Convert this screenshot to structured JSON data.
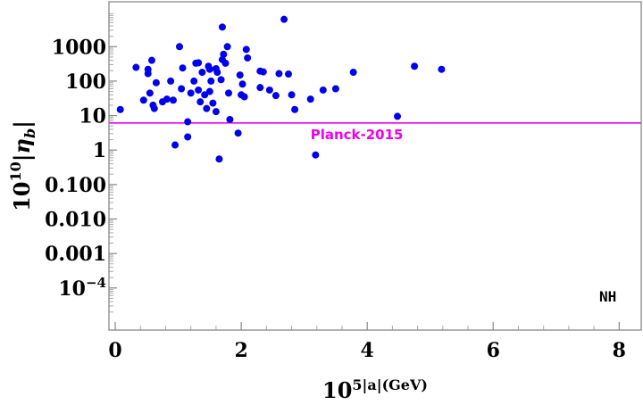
{
  "chart_data": {
    "type": "scatter",
    "title": "",
    "xlabel": "10^5|a|(GeV)",
    "ylabel": "10^10|η_b|",
    "x_scale": "linear",
    "y_scale": "log",
    "xlim": [
      -0.1,
      8.35
    ],
    "ylim": [
      6e-06,
      20000
    ],
    "xticks": [
      0,
      2,
      4,
      6,
      8
    ],
    "xtick_labels": [
      "0",
      "2",
      "4",
      "6",
      "8"
    ],
    "yticks": [
      1000,
      100,
      10,
      1,
      0.1,
      0.01,
      0.001,
      0.0001
    ],
    "ytick_labels": [
      "1000",
      "100",
      "10",
      "1",
      "0.100",
      "0.010",
      "0.001",
      "10^-4"
    ],
    "point_color": "#0000ee",
    "reference_line": {
      "label": "Planck-2015",
      "y": 6.1,
      "color": "#ee00ee"
    },
    "annotation": "NH",
    "points": [
      {
        "x": 0.08,
        "y": 15
      },
      {
        "x": 0.33,
        "y": 250
      },
      {
        "x": 0.45,
        "y": 28
      },
      {
        "x": 0.52,
        "y": 220
      },
      {
        "x": 0.52,
        "y": 165
      },
      {
        "x": 0.55,
        "y": 45
      },
      {
        "x": 0.58,
        "y": 400
      },
      {
        "x": 0.6,
        "y": 20
      },
      {
        "x": 0.62,
        "y": 16
      },
      {
        "x": 0.65,
        "y": 90
      },
      {
        "x": 0.75,
        "y": 25
      },
      {
        "x": 0.82,
        "y": 30
      },
      {
        "x": 0.88,
        "y": 100
      },
      {
        "x": 0.92,
        "y": 28
      },
      {
        "x": 0.95,
        "y": 1.4
      },
      {
        "x": 1.02,
        "y": 1000
      },
      {
        "x": 1.05,
        "y": 60
      },
      {
        "x": 1.07,
        "y": 240
      },
      {
        "x": 1.15,
        "y": 2.4
      },
      {
        "x": 1.15,
        "y": 6.6
      },
      {
        "x": 1.2,
        "y": 45
      },
      {
        "x": 1.25,
        "y": 100
      },
      {
        "x": 1.28,
        "y": 330
      },
      {
        "x": 1.32,
        "y": 340
      },
      {
        "x": 1.32,
        "y": 55
      },
      {
        "x": 1.35,
        "y": 25
      },
      {
        "x": 1.38,
        "y": 180
      },
      {
        "x": 1.42,
        "y": 40
      },
      {
        "x": 1.45,
        "y": 16
      },
      {
        "x": 1.48,
        "y": 270
      },
      {
        "x": 1.5,
        "y": 220
      },
      {
        "x": 1.5,
        "y": 50
      },
      {
        "x": 1.52,
        "y": 100
      },
      {
        "x": 1.55,
        "y": 23
      },
      {
        "x": 1.6,
        "y": 13
      },
      {
        "x": 1.6,
        "y": 230
      },
      {
        "x": 1.62,
        "y": 180
      },
      {
        "x": 1.65,
        "y": 0.55
      },
      {
        "x": 1.68,
        "y": 110
      },
      {
        "x": 1.7,
        "y": 3700
      },
      {
        "x": 1.7,
        "y": 420
      },
      {
        "x": 1.72,
        "y": 600
      },
      {
        "x": 1.75,
        "y": 330
      },
      {
        "x": 1.78,
        "y": 1000
      },
      {
        "x": 1.8,
        "y": 45
      },
      {
        "x": 1.82,
        "y": 7.7
      },
      {
        "x": 1.95,
        "y": 3.1
      },
      {
        "x": 1.98,
        "y": 150
      },
      {
        "x": 2.0,
        "y": 40
      },
      {
        "x": 2.02,
        "y": 82
      },
      {
        "x": 2.05,
        "y": 35
      },
      {
        "x": 2.08,
        "y": 830
      },
      {
        "x": 2.1,
        "y": 470
      },
      {
        "x": 2.3,
        "y": 195
      },
      {
        "x": 2.3,
        "y": 65
      },
      {
        "x": 2.35,
        "y": 185
      },
      {
        "x": 2.45,
        "y": 55
      },
      {
        "x": 2.55,
        "y": 38
      },
      {
        "x": 2.6,
        "y": 165
      },
      {
        "x": 2.68,
        "y": 6200
      },
      {
        "x": 2.75,
        "y": 160
      },
      {
        "x": 2.8,
        "y": 40
      },
      {
        "x": 2.85,
        "y": 15
      },
      {
        "x": 3.1,
        "y": 30
      },
      {
        "x": 3.18,
        "y": 0.72
      },
      {
        "x": 3.3,
        "y": 55
      },
      {
        "x": 3.5,
        "y": 60
      },
      {
        "x": 3.78,
        "y": 180
      },
      {
        "x": 4.48,
        "y": 9.5
      },
      {
        "x": 4.75,
        "y": 270
      },
      {
        "x": 5.18,
        "y": 220
      }
    ]
  }
}
